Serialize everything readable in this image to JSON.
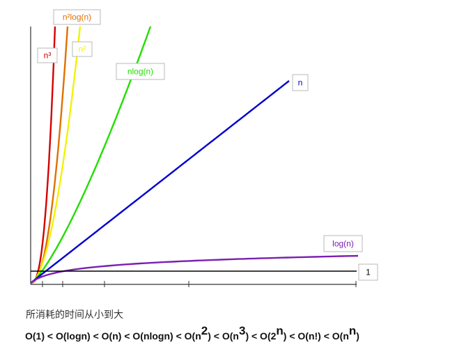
{
  "chart_data": {
    "type": "line",
    "title": "",
    "xlabel": "",
    "ylabel": "",
    "grid": false,
    "legend": "inline labels",
    "series": [
      {
        "name": "n³",
        "color": "#d40000",
        "func": "cubic"
      },
      {
        "name": "n²log(n)",
        "color": "#e07000",
        "func": "n2logn"
      },
      {
        "name": "n²",
        "color": "#f2f200",
        "func": "quadratic"
      },
      {
        "name": "nlog(n)",
        "color": "#22dd00",
        "func": "nlogn"
      },
      {
        "name": "n",
        "color": "#0000cc",
        "func": "linear"
      },
      {
        "name": "log(n)",
        "color": "#7a1fb0",
        "func": "log"
      },
      {
        "name": "1",
        "color": "#000000",
        "func": "constant"
      }
    ]
  },
  "caption": "所消耗的时间从小到大",
  "complexity_order": [
    {
      "base": "O(1) < O(logn) < O(n) < O(nlogn) < O(n",
      "sup": "2"
    },
    {
      "base": ") < O(n",
      "sup": "3"
    },
    {
      "base": ") < O(2",
      "sup": "n"
    },
    {
      "base": ") < O(n!) < O(n",
      "sup": "n"
    },
    {
      "base": ")",
      "sup": ""
    }
  ]
}
